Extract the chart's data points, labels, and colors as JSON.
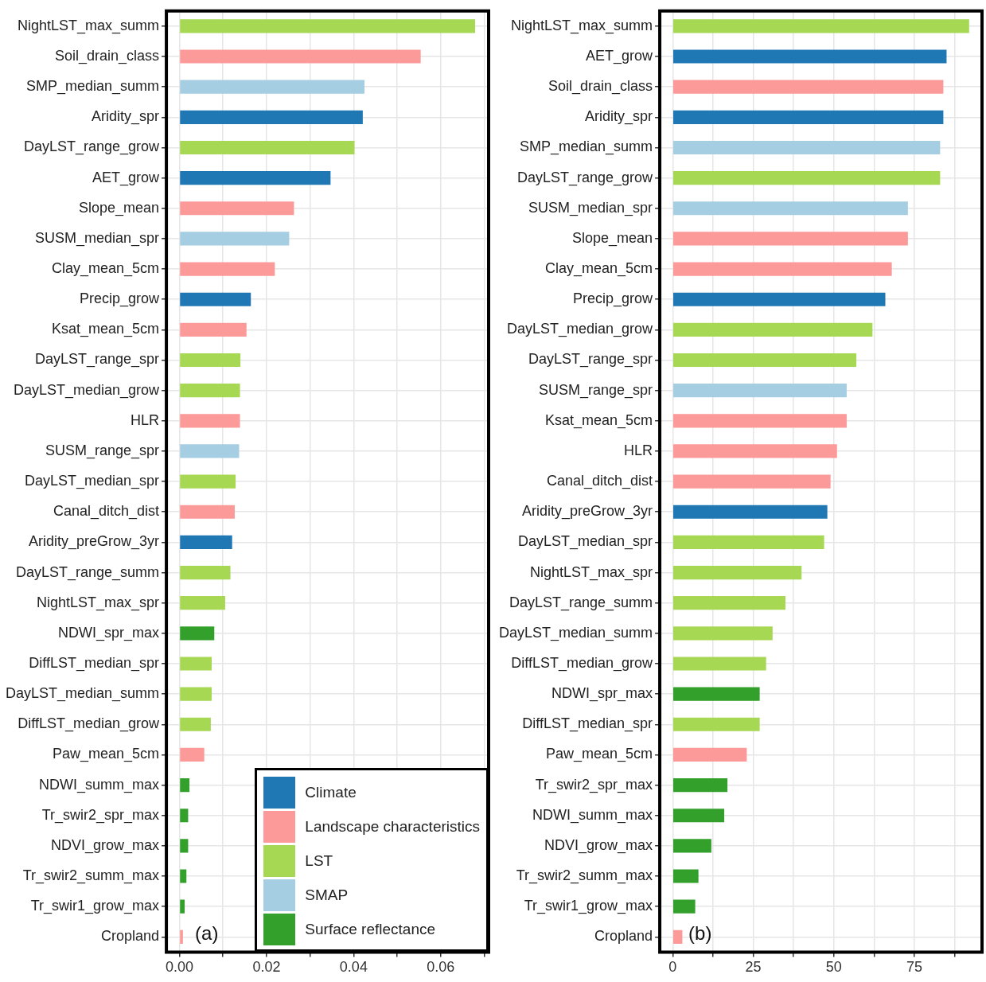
{
  "chart_data": [
    {
      "type": "bar",
      "orientation": "horizontal",
      "stacked": true,
      "grid": true,
      "legend": "bottom right",
      "annotations": [
        "(a)"
      ],
      "categories": [
        "NightLST_max_summ",
        "Soil_drain_class",
        "SMP_median_summ",
        "Aridity_spr",
        "DayLST_range_grow",
        "AET_grow",
        "Slope_mean",
        "SUSM_median_spr",
        "Clay_mean_5cm",
        "Precip_grow",
        "Ksat_mean_5cm",
        "DayLST_range_spr",
        "DayLST_median_grow",
        "HLR",
        "SUSM_range_spr",
        "DayLST_median_spr",
        "Canal_ditch_dist",
        "Aridity_preGrow_3yr",
        "DayLST_range_summ",
        "NightLST_max_spr",
        "NDWI_spr_max",
        "DiffLST_median_spr",
        "DayLST_median_summ",
        "DiffLST_median_grow",
        "Paw_mean_5cm",
        "NDWI_summ_max",
        "Tr_swir2_spr_max",
        "NDVI_grow_max",
        "Tr_swir2_summ_max",
        "Tr_swir1_grow_max",
        "Cropland"
      ],
      "xlim": [
        -0.003,
        0.071
      ],
      "xticks": [
        {
          "value": 0,
          "label": "0.00"
        },
        {
          "value": 0.01,
          "label": null
        },
        {
          "value": 0.02,
          "label": "0.02"
        },
        {
          "value": 0.03,
          "label": null
        },
        {
          "value": 0.04,
          "label": "0.04"
        },
        {
          "value": 0.05,
          "label": null
        },
        {
          "value": 0.06,
          "label": "0.06"
        },
        {
          "value": 0.07,
          "label": null
        }
      ],
      "series": [
        {
          "name": "Climate",
          "color": "#1f78b4",
          "values": [
            null,
            null,
            null,
            0.0421,
            null,
            0.0347,
            null,
            null,
            null,
            0.0164,
            null,
            null,
            null,
            null,
            null,
            null,
            null,
            0.0121,
            null,
            null,
            null,
            null,
            null,
            null,
            null,
            null,
            null,
            null,
            null,
            null,
            null
          ]
        },
        {
          "name": "Landscape characteristics",
          "color": "#fb9a99",
          "values": [
            null,
            0.0554,
            null,
            null,
            null,
            null,
            0.0263,
            null,
            0.0219,
            null,
            0.0154,
            null,
            null,
            0.0139,
            null,
            null,
            0.0127,
            null,
            null,
            null,
            null,
            null,
            null,
            null,
            0.0057,
            null,
            null,
            null,
            null,
            null,
            0.0008
          ]
        },
        {
          "name": "LST",
          "color": "#a6d854",
          "values": [
            0.0679,
            null,
            null,
            null,
            0.0402,
            null,
            null,
            null,
            null,
            null,
            null,
            0.014,
            0.0139,
            null,
            null,
            0.0129,
            null,
            null,
            0.0117,
            0.0105,
            null,
            0.0074,
            0.0074,
            0.0072,
            null,
            null,
            null,
            null,
            null,
            null,
            null
          ]
        },
        {
          "name": "SMAP",
          "color": "#a6cee3",
          "values": [
            null,
            null,
            0.0425,
            null,
            null,
            null,
            null,
            0.0252,
            null,
            null,
            null,
            null,
            null,
            null,
            0.0137,
            null,
            null,
            null,
            null,
            null,
            null,
            null,
            null,
            null,
            null,
            null,
            null,
            null,
            null,
            null,
            null
          ]
        },
        {
          "name": "Surface reflectance",
          "color": "#33a02c",
          "values": [
            null,
            null,
            null,
            null,
            null,
            null,
            null,
            null,
            null,
            null,
            null,
            null,
            null,
            null,
            null,
            null,
            null,
            null,
            null,
            null,
            0.008,
            null,
            null,
            null,
            null,
            0.0023,
            0.002,
            0.002,
            0.0016,
            0.0012,
            null
          ]
        }
      ]
    },
    {
      "type": "bar",
      "orientation": "horizontal",
      "stacked": true,
      "grid": true,
      "annotations": [
        "(b)"
      ],
      "categories": [
        "NightLST_max_summ",
        "AET_grow",
        "Soil_drain_class",
        "Aridity_spr",
        "SMP_median_summ",
        "DayLST_range_grow",
        "SUSM_median_spr",
        "Slope_mean",
        "Clay_mean_5cm",
        "Precip_grow",
        "DayLST_median_grow",
        "DayLST_range_spr",
        "SUSM_range_spr",
        "Ksat_mean_5cm",
        "HLR",
        "Canal_ditch_dist",
        "Aridity_preGrow_3yr",
        "DayLST_median_spr",
        "NightLST_max_spr",
        "DayLST_range_summ",
        "DayLST_median_summ",
        "DiffLST_median_grow",
        "NDWI_spr_max",
        "DiffLST_median_spr",
        "Paw_mean_5cm",
        "Tr_swir2_spr_max",
        "NDWI_summ_max",
        "NDVI_grow_max",
        "Tr_swir2_summ_max",
        "Tr_swir1_grow_max",
        "Cropland"
      ],
      "xlim": [
        -4,
        96
      ],
      "xticks": [
        0,
        {
          "value": 12.5,
          "label": null
        },
        25,
        {
          "value": 37.5,
          "label": null
        },
        50,
        {
          "value": 62.5,
          "label": null
        },
        75,
        {
          "value": 87.5,
          "label": null
        }
      ],
      "series": [
        {
          "color": "#1f78b4",
          "values": [
            null,
            85,
            null,
            84,
            null,
            null,
            null,
            null,
            null,
            66,
            null,
            null,
            null,
            null,
            null,
            null,
            48,
            null,
            null,
            null,
            null,
            null,
            null,
            null,
            null,
            null,
            null,
            null,
            null,
            null,
            null
          ]
        },
        {
          "color": "#fb9a99",
          "values": [
            null,
            null,
            84,
            null,
            null,
            null,
            null,
            73,
            68,
            null,
            null,
            null,
            null,
            54,
            51,
            49,
            null,
            null,
            null,
            null,
            null,
            null,
            null,
            null,
            23,
            null,
            null,
            null,
            null,
            null,
            3
          ]
        },
        {
          "color": "#a6d854",
          "values": [
            92,
            null,
            null,
            null,
            null,
            83,
            null,
            null,
            null,
            null,
            62,
            57,
            null,
            null,
            null,
            null,
            null,
            47,
            40,
            35,
            31,
            29,
            null,
            27,
            null,
            null,
            null,
            null,
            null,
            null,
            null
          ]
        },
        {
          "color": "#a6cee3",
          "values": [
            null,
            null,
            null,
            null,
            83,
            null,
            73,
            null,
            null,
            null,
            null,
            null,
            54,
            null,
            null,
            null,
            null,
            null,
            null,
            null,
            null,
            null,
            null,
            null,
            null,
            null,
            null,
            null,
            null,
            null,
            null
          ]
        },
        {
          "color": "#33a02c",
          "values": [
            null,
            null,
            null,
            null,
            null,
            null,
            null,
            null,
            null,
            null,
            null,
            null,
            null,
            null,
            null,
            null,
            null,
            null,
            null,
            null,
            null,
            null,
            27,
            null,
            null,
            17,
            16,
            12,
            8,
            7,
            null
          ]
        }
      ]
    }
  ]
}
